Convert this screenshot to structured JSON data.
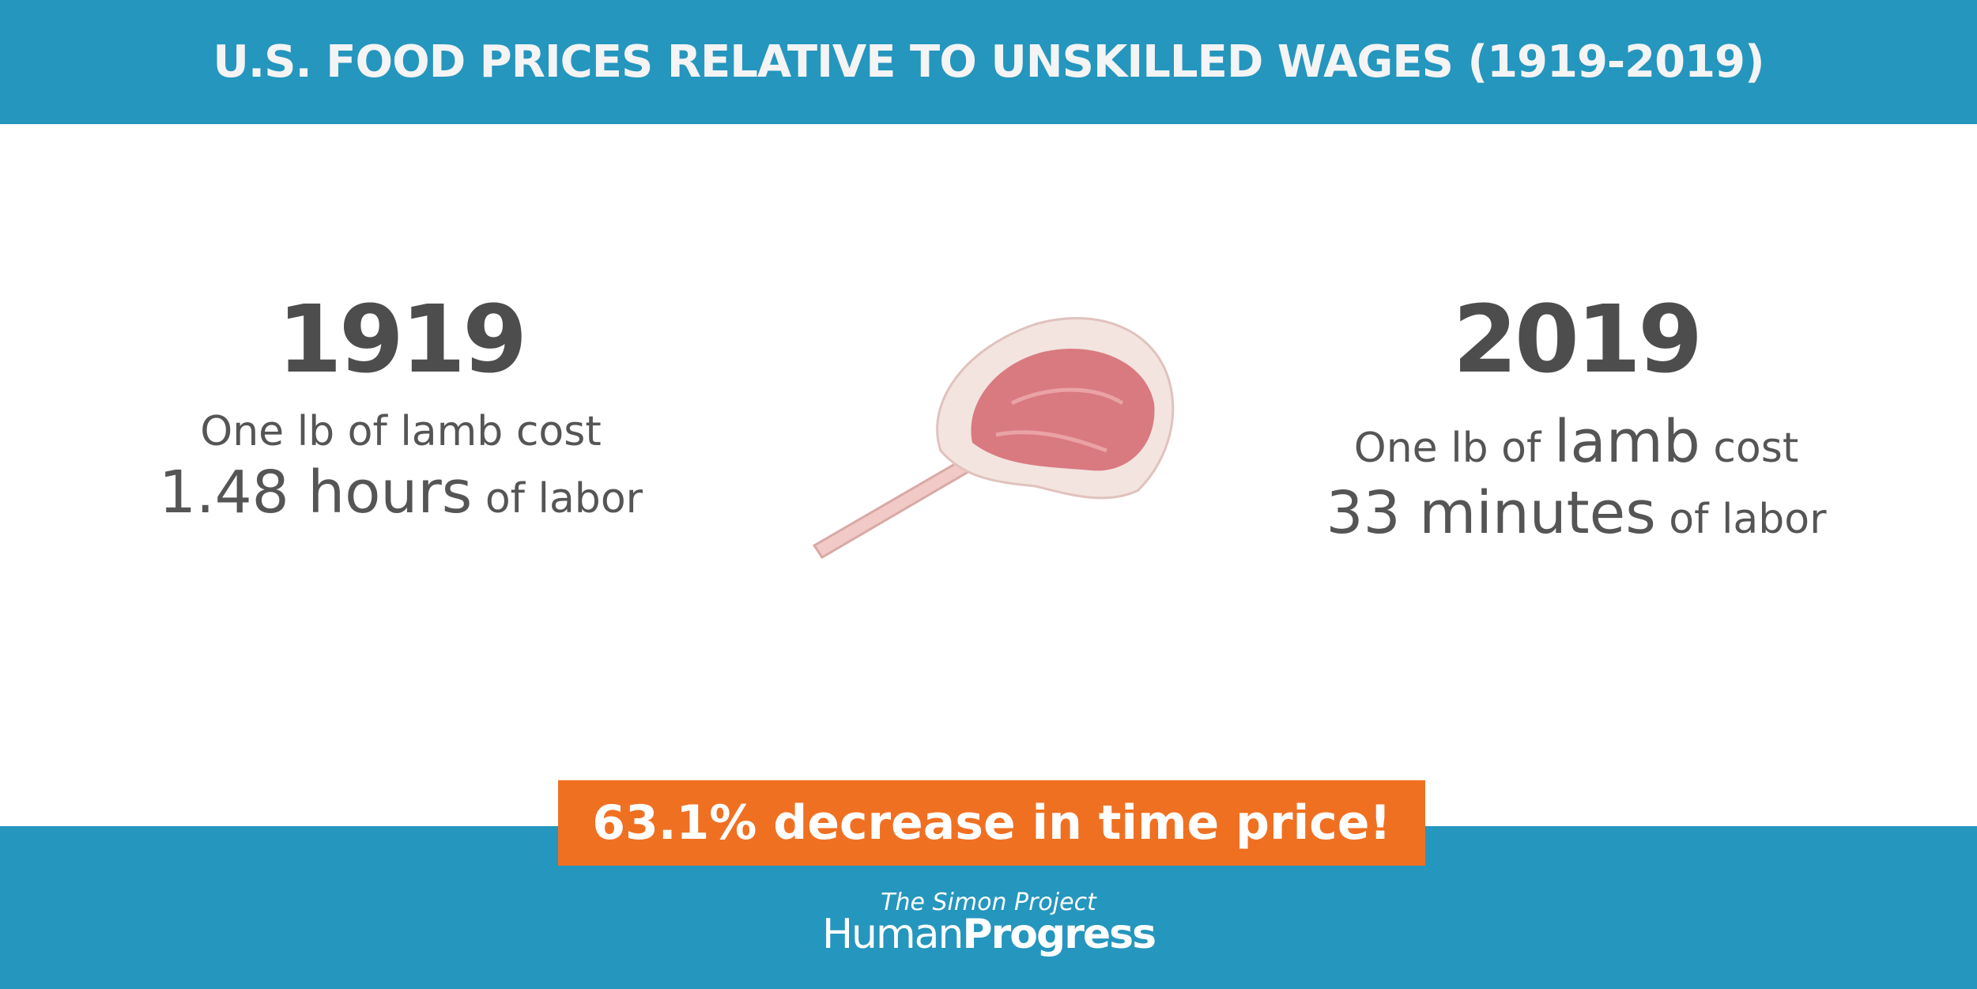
{
  "header": {
    "title": "U.S. FOOD PRICES RELATIVE TO UNSKILLED WAGES (1919-2019)"
  },
  "left": {
    "year": "1919",
    "line1": [
      "One lb of lamb cost"
    ],
    "amount": "1.48 hours",
    "unit": "of labor"
  },
  "right": {
    "year": "2019",
    "line1": [
      "One lb of",
      "lamb",
      "cost"
    ],
    "amount": "33 minutes",
    "unit": "of labor"
  },
  "banner": "63.1% decrease in time price!",
  "footer": {
    "project": "The Simon Project",
    "brand_part1": "Human",
    "brand_part2": "Progress"
  }
}
